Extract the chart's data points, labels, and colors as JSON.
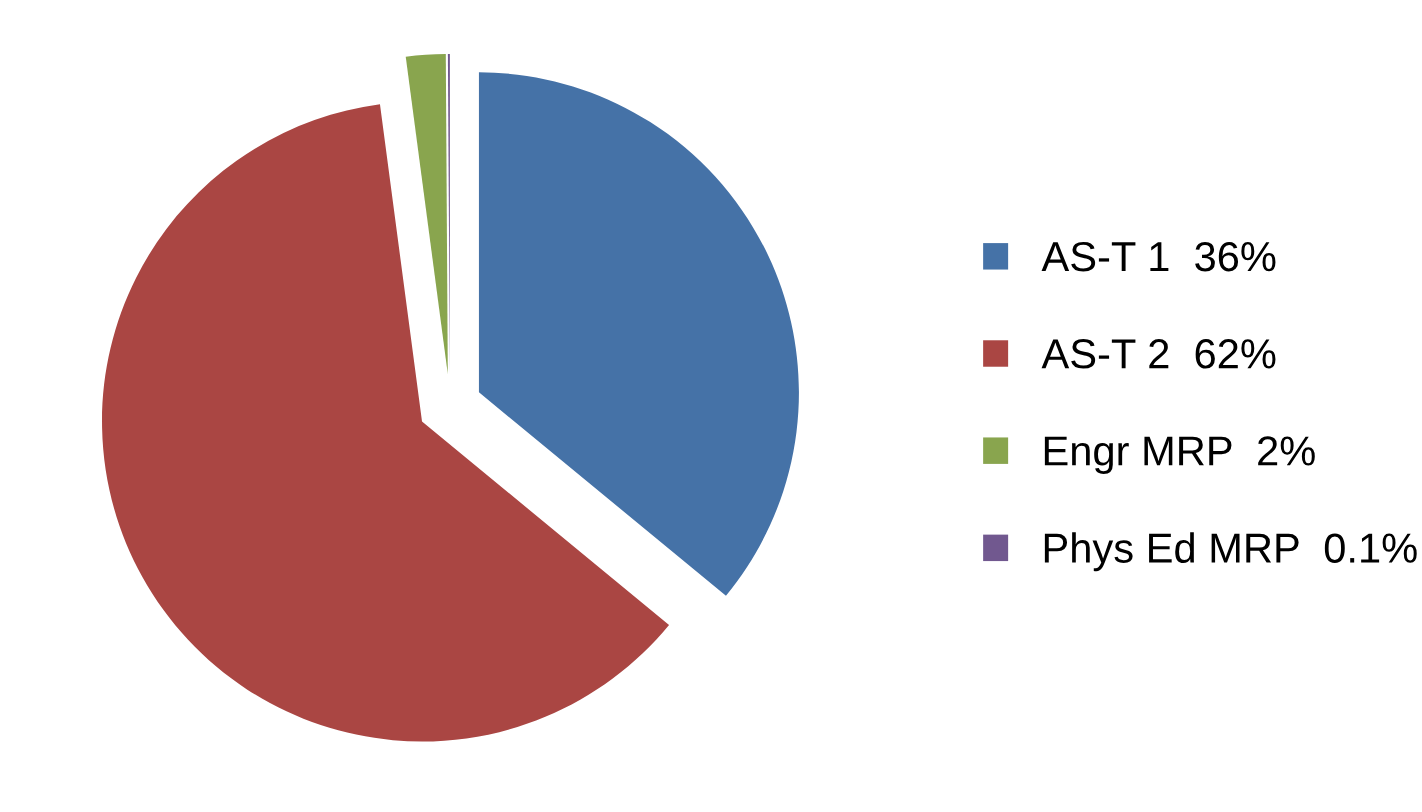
{
  "chart_data": {
    "type": "pie",
    "categories": [
      "AS-T 1",
      "AS-T 2",
      "Engr MRP",
      "Phys Ed MRP"
    ],
    "values": [
      36,
      62,
      2,
      0.1
    ],
    "value_labels": [
      "36%",
      "62%",
      "2%",
      "0.1%"
    ],
    "colors": [
      "#4572a7",
      "#aa4643",
      "#89a54e",
      "#71588f"
    ],
    "legend": "right"
  }
}
